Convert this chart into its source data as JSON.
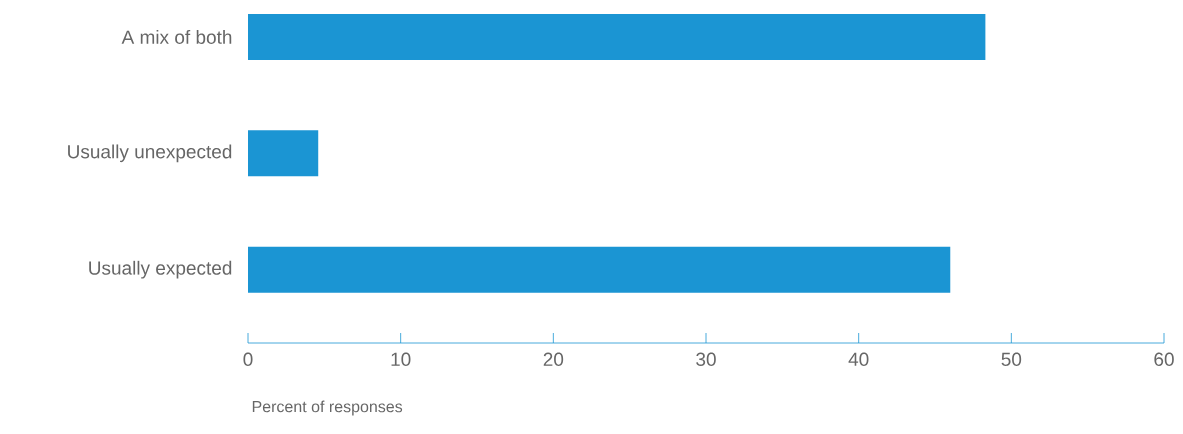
{
  "chart_data": {
    "type": "bar",
    "orientation": "horizontal",
    "categories": [
      "A mix of both",
      "Usually unexpected",
      "Usually expected"
    ],
    "values": [
      48.3,
      4.6,
      46
    ],
    "color": "#1b95d3",
    "xlim": [
      0,
      60
    ],
    "xticks": [
      0,
      10,
      20,
      30,
      40,
      50,
      60
    ],
    "xlabel": "Percent of responses"
  }
}
